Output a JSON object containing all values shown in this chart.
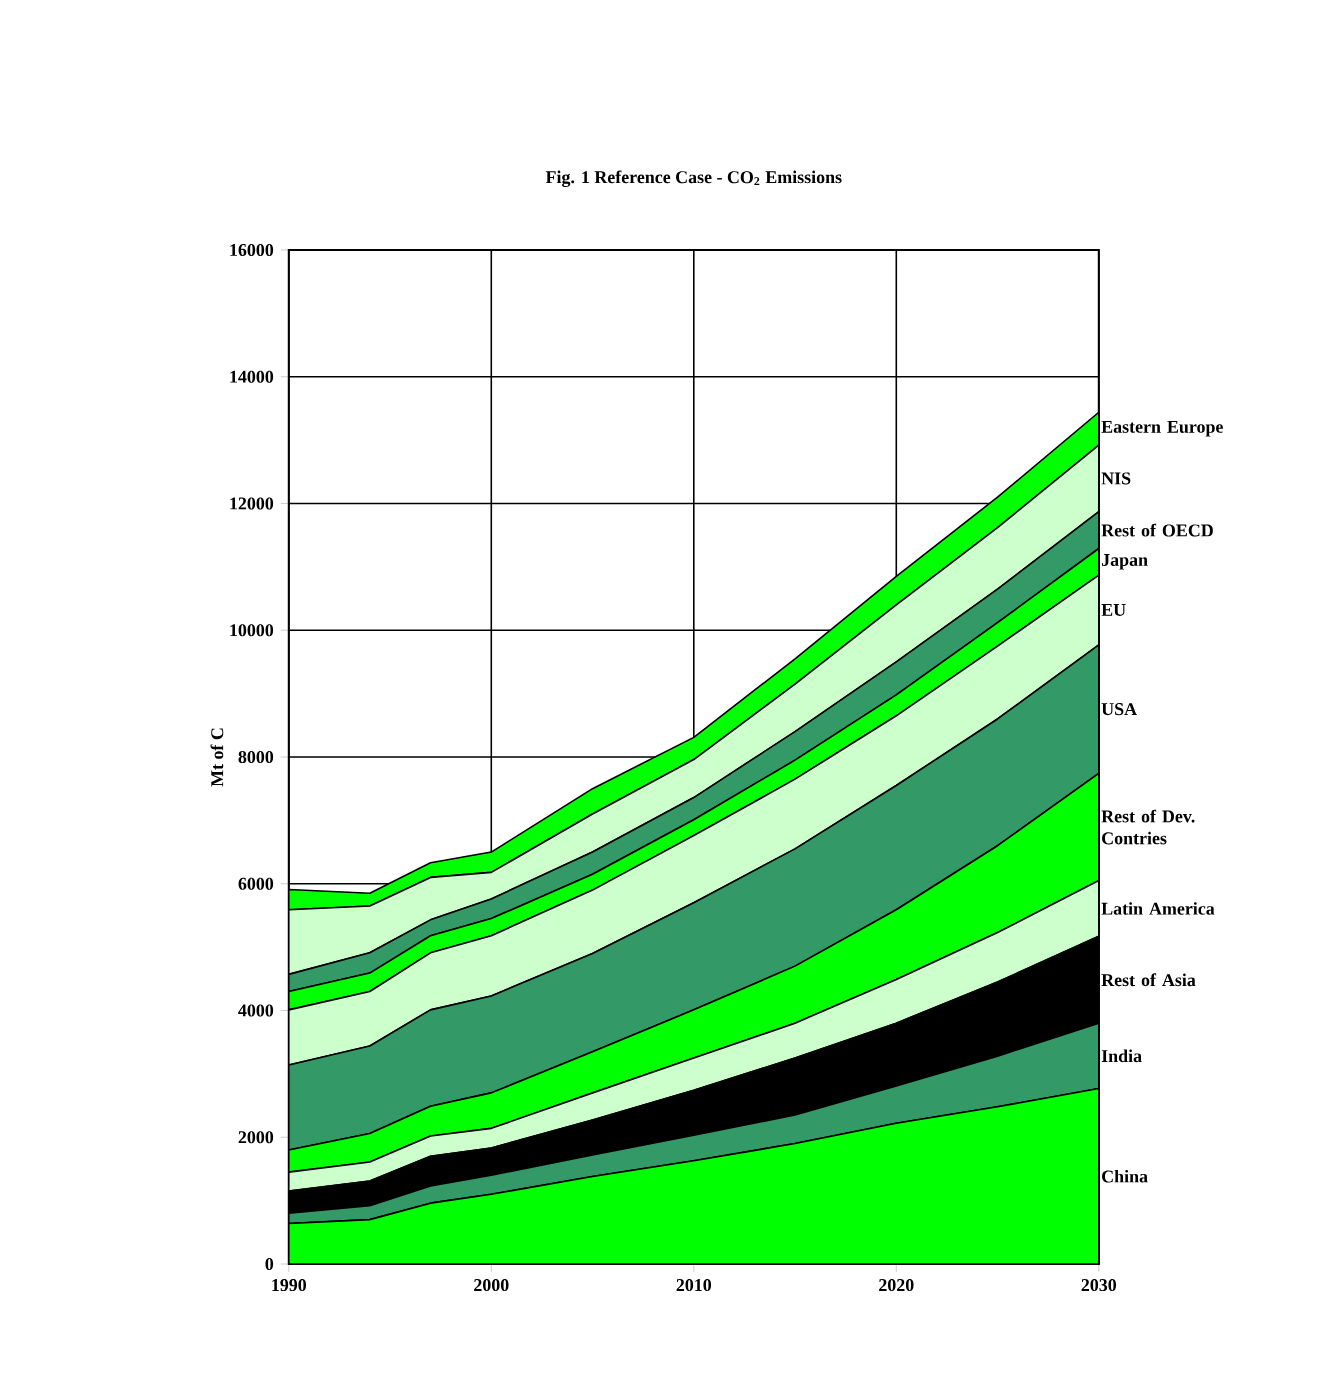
{
  "chart_data": {
    "type": "area",
    "title": "Fig. 1  Reference Case - CO$_{2}$ Emissions",
    "ylabel": "Mt of C",
    "stacked": true,
    "grid": true,
    "x": [
      1990,
      1994,
      1997,
      2000,
      2005,
      2010,
      2015,
      2020,
      2025,
      2030
    ],
    "xlim": [
      1990,
      2030
    ],
    "ylim": [
      0,
      16000
    ],
    "xticks": [
      1990,
      2000,
      2010,
      2020,
      2030
    ],
    "yticks": [
      0,
      2000,
      4000,
      6000,
      8000,
      10000,
      12000,
      14000,
      16000
    ],
    "series": [
      {
        "name": "China",
        "color": "#00ff00",
        "values": [
          640,
          700,
          960,
          1100,
          1380,
          1630,
          1900,
          2220,
          2480,
          2770
        ]
      },
      {
        "name": "India",
        "color": "#339966",
        "values": [
          160,
          220,
          270,
          300,
          340,
          400,
          450,
          590,
          800,
          1030
        ]
      },
      {
        "name": "Rest of Asia",
        "color": "#000000",
        "values": [
          350,
          390,
          470,
          430,
          550,
          710,
          900,
          990,
          1170,
          1370
        ]
      },
      {
        "name": "Latin America",
        "color": "#ccffcc",
        "values": [
          300,
          300,
          320,
          310,
          430,
          510,
          550,
          690,
          780,
          880
        ]
      },
      {
        "name": "Rest of Dev. Contries",
        "color": "#00ff00",
        "values": [
          350,
          450,
          470,
          560,
          650,
          760,
          900,
          1100,
          1370,
          1690
        ]
      },
      {
        "name": "USA",
        "color": "#339966",
        "values": [
          1340,
          1380,
          1520,
          1530,
          1550,
          1690,
          1850,
          1960,
          2000,
          2030
        ]
      },
      {
        "name": "EU",
        "color": "#ccffcc",
        "values": [
          870,
          860,
          900,
          950,
          1000,
          1060,
          1100,
          1100,
          1150,
          1100
        ]
      },
      {
        "name": "Japan",
        "color": "#00ff00",
        "values": [
          290,
          290,
          270,
          270,
          250,
          250,
          300,
          330,
          370,
          420
        ]
      },
      {
        "name": "Rest of OECD",
        "color": "#339966",
        "values": [
          270,
          320,
          250,
          310,
          350,
          350,
          450,
          520,
          530,
          580
        ]
      },
      {
        "name": "NIS",
        "color": "#ccffcc",
        "values": [
          1020,
          740,
          670,
          420,
          600,
          600,
          750,
          900,
          970,
          1050
        ]
      },
      {
        "name": "Eastern Europe",
        "color": "#00ff00",
        "values": [
          320,
          200,
          230,
          320,
          400,
          350,
          400,
          450,
          480,
          520
        ]
      }
    ]
  }
}
